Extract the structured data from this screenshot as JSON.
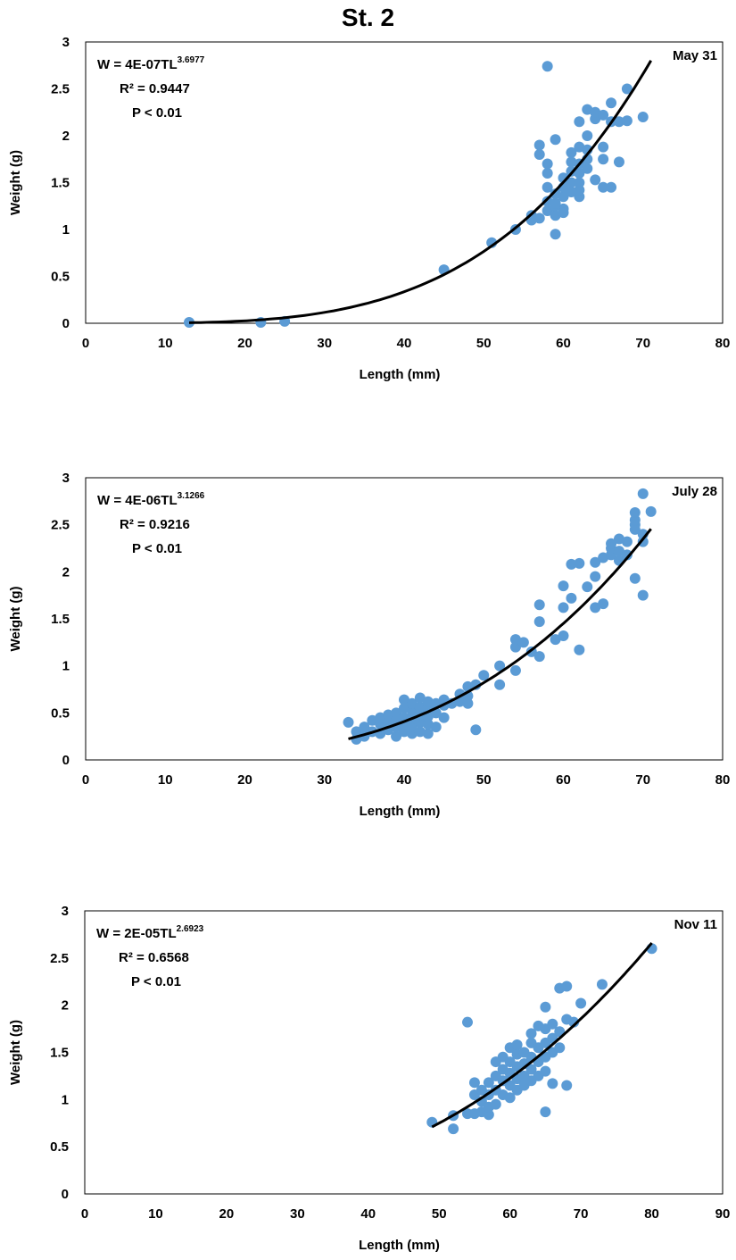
{
  "title": "St. 2",
  "colors": {
    "marker": "#5B9BD5",
    "trend": "#000000",
    "frame": "#000000"
  },
  "chart_data": [
    {
      "type": "scatter",
      "date_label": "May 31",
      "xlabel": "Length (mm)",
      "ylabel": "Weight (g)",
      "xlim": [
        0,
        80
      ],
      "ylim": [
        0,
        3
      ],
      "xticks": [
        "0",
        "10",
        "20",
        "30",
        "40",
        "50",
        "60",
        "70",
        "80"
      ],
      "yticks": [
        "0",
        "0.5",
        "1",
        "1.5",
        "2",
        "2.5",
        "3"
      ],
      "equation": {
        "prefix": "W = 4E-07TL",
        "exponent": "3.6977",
        "a": 4e-07,
        "b": 3.6977,
        "fit_range": [
          13,
          71
        ]
      },
      "r2_label": "R² = 0.9447",
      "p_label": "P < 0.01",
      "points": [
        [
          13,
          0.01
        ],
        [
          22,
          0.01
        ],
        [
          25,
          0.02
        ],
        [
          45,
          0.57
        ],
        [
          51,
          0.86
        ],
        [
          54,
          1.0
        ],
        [
          56,
          1.1
        ],
        [
          57,
          1.12
        ],
        [
          57,
          1.8
        ],
        [
          57,
          1.9
        ],
        [
          58,
          1.2
        ],
        [
          58,
          1.3
        ],
        [
          58,
          1.45
        ],
        [
          58,
          1.6
        ],
        [
          58,
          1.7
        ],
        [
          58,
          2.74
        ],
        [
          59,
          0.95
        ],
        [
          59,
          1.15
        ],
        [
          59,
          1.25
        ],
        [
          59,
          1.38
        ],
        [
          59,
          1.96
        ],
        [
          60,
          1.22
        ],
        [
          60,
          1.35
        ],
        [
          60,
          1.45
        ],
        [
          60,
          1.55
        ],
        [
          61,
          1.5
        ],
        [
          61,
          1.62
        ],
        [
          61,
          1.72
        ],
        [
          61,
          1.82
        ],
        [
          62,
          1.35
        ],
        [
          62,
          1.42
        ],
        [
          62,
          1.5
        ],
        [
          62,
          1.6
        ],
        [
          62,
          1.7
        ],
        [
          62,
          1.88
        ],
        [
          62,
          2.15
        ],
        [
          63,
          1.65
        ],
        [
          63,
          1.75
        ],
        [
          63,
          1.85
        ],
        [
          63,
          2.0
        ],
        [
          63,
          2.28
        ],
        [
          64,
          1.53
        ],
        [
          64,
          2.18
        ],
        [
          64,
          2.25
        ],
        [
          65,
          1.45
        ],
        [
          65,
          1.75
        ],
        [
          65,
          1.88
        ],
        [
          65,
          2.22
        ],
        [
          66,
          1.45
        ],
        [
          66,
          2.15
        ],
        [
          66,
          2.35
        ],
        [
          67,
          1.72
        ],
        [
          67,
          2.15
        ],
        [
          68,
          2.16
        ],
        [
          68,
          2.5
        ],
        [
          70,
          2.2
        ],
        [
          56,
          1.15
        ],
        [
          59,
          1.28
        ],
        [
          60,
          1.18
        ],
        [
          61,
          1.4
        ]
      ]
    },
    {
      "type": "scatter",
      "date_label": "July 28",
      "xlabel": "Length (mm)",
      "ylabel": "Weight (g)",
      "xlim": [
        0,
        80
      ],
      "ylim": [
        0,
        3
      ],
      "xticks": [
        "0",
        "10",
        "20",
        "30",
        "40",
        "50",
        "60",
        "70",
        "80"
      ],
      "yticks": [
        "0",
        "0.5",
        "1",
        "1.5",
        "2",
        "2.5",
        "3"
      ],
      "equation": {
        "prefix": "W = 4E-06TL",
        "exponent": "3.1266",
        "a": 4e-06,
        "b": 3.1266,
        "fit_range": [
          33,
          71
        ]
      },
      "r2_label": "R² = 0.9216",
      "p_label": "P < 0.01",
      "points": [
        [
          33,
          0.4
        ],
        [
          34,
          0.22
        ],
        [
          34,
          0.3
        ],
        [
          35,
          0.25
        ],
        [
          35,
          0.35
        ],
        [
          36,
          0.3
        ],
        [
          36,
          0.42
        ],
        [
          37,
          0.28
        ],
        [
          37,
          0.38
        ],
        [
          37,
          0.45
        ],
        [
          38,
          0.32
        ],
        [
          38,
          0.4
        ],
        [
          38,
          0.48
        ],
        [
          39,
          0.25
        ],
        [
          39,
          0.35
        ],
        [
          39,
          0.42
        ],
        [
          39,
          0.5
        ],
        [
          40,
          0.3
        ],
        [
          40,
          0.38
        ],
        [
          40,
          0.45
        ],
        [
          40,
          0.55
        ],
        [
          40,
          0.64
        ],
        [
          41,
          0.28
        ],
        [
          41,
          0.36
        ],
        [
          41,
          0.44
        ],
        [
          41,
          0.52
        ],
        [
          41,
          0.6
        ],
        [
          42,
          0.3
        ],
        [
          42,
          0.4
        ],
        [
          42,
          0.48
        ],
        [
          42,
          0.56
        ],
        [
          42,
          0.66
        ],
        [
          43,
          0.28
        ],
        [
          43,
          0.38
        ],
        [
          43,
          0.46
        ],
        [
          43,
          0.55
        ],
        [
          43,
          0.62
        ],
        [
          44,
          0.35
        ],
        [
          44,
          0.5
        ],
        [
          44,
          0.6
        ],
        [
          45,
          0.45
        ],
        [
          45,
          0.58
        ],
        [
          45,
          0.64
        ],
        [
          46,
          0.6
        ],
        [
          47,
          0.62
        ],
        [
          47,
          0.7
        ],
        [
          48,
          0.6
        ],
        [
          48,
          0.68
        ],
        [
          48,
          0.78
        ],
        [
          49,
          0.32
        ],
        [
          49,
          0.8
        ],
        [
          50,
          0.9
        ],
        [
          52,
          0.8
        ],
        [
          52,
          1.0
        ],
        [
          54,
          0.95
        ],
        [
          54,
          1.2
        ],
        [
          54,
          1.28
        ],
        [
          55,
          1.25
        ],
        [
          56,
          1.15
        ],
        [
          57,
          1.1
        ],
        [
          57,
          1.47
        ],
        [
          57,
          1.65
        ],
        [
          59,
          1.28
        ],
        [
          60,
          1.32
        ],
        [
          60,
          1.62
        ],
        [
          60,
          1.85
        ],
        [
          61,
          1.72
        ],
        [
          61,
          2.08
        ],
        [
          62,
          1.17
        ],
        [
          62,
          2.09
        ],
        [
          63,
          1.84
        ],
        [
          64,
          1.62
        ],
        [
          64,
          1.95
        ],
        [
          64,
          2.1
        ],
        [
          65,
          1.66
        ],
        [
          65,
          2.15
        ],
        [
          66,
          2.18
        ],
        [
          66,
          2.25
        ],
        [
          66,
          2.3
        ],
        [
          67,
          2.12
        ],
        [
          67,
          2.22
        ],
        [
          67,
          2.35
        ],
        [
          68,
          2.18
        ],
        [
          68,
          2.32
        ],
        [
          69,
          1.93
        ],
        [
          69,
          2.45
        ],
        [
          69,
          2.5
        ],
        [
          69,
          2.55
        ],
        [
          69,
          2.63
        ],
        [
          70,
          1.75
        ],
        [
          70,
          2.32
        ],
        [
          70,
          2.4
        ],
        [
          70,
          2.83
        ],
        [
          71,
          2.64
        ]
      ]
    },
    {
      "type": "scatter",
      "date_label": "Nov 11",
      "xlabel": "Length (mm)",
      "ylabel": "Weight (g)",
      "xlim": [
        0,
        90
      ],
      "ylim": [
        0,
        3
      ],
      "xticks": [
        "0",
        "10",
        "20",
        "30",
        "40",
        "50",
        "60",
        "70",
        "80",
        "90"
      ],
      "yticks": [
        "0",
        "0.5",
        "1",
        "1.5",
        "2",
        "2.5",
        "3"
      ],
      "equation": {
        "prefix": "W = 2E-05TL",
        "exponent": "2.6923",
        "a": 2e-05,
        "b": 2.6923,
        "fit_range": [
          49,
          80
        ]
      },
      "r2_label": "R² = 0.6568",
      "p_label": "P < 0.01",
      "points": [
        [
          49,
          0.76
        ],
        [
          52,
          0.69
        ],
        [
          52,
          0.83
        ],
        [
          54,
          0.85
        ],
        [
          54,
          1.82
        ],
        [
          55,
          0.85
        ],
        [
          55,
          1.05
        ],
        [
          55,
          1.18
        ],
        [
          56,
          0.87
        ],
        [
          56,
          0.98
        ],
        [
          56,
          1.1
        ],
        [
          57,
          0.84
        ],
        [
          57,
          0.92
        ],
        [
          57,
          1.05
        ],
        [
          57,
          1.18
        ],
        [
          58,
          0.95
        ],
        [
          58,
          1.1
        ],
        [
          58,
          1.25
        ],
        [
          58,
          1.4
        ],
        [
          59,
          1.05
        ],
        [
          59,
          1.2
        ],
        [
          59,
          1.32
        ],
        [
          59,
          1.45
        ],
        [
          60,
          1.02
        ],
        [
          60,
          1.15
        ],
        [
          60,
          1.28
        ],
        [
          60,
          1.4
        ],
        [
          60,
          1.55
        ],
        [
          61,
          1.1
        ],
        [
          61,
          1.22
        ],
        [
          61,
          1.35
        ],
        [
          61,
          1.48
        ],
        [
          61,
          1.58
        ],
        [
          62,
          1.15
        ],
        [
          62,
          1.25
        ],
        [
          62,
          1.38
        ],
        [
          62,
          1.5
        ],
        [
          63,
          1.2
        ],
        [
          63,
          1.32
        ],
        [
          63,
          1.45
        ],
        [
          63,
          1.6
        ],
        [
          63,
          1.7
        ],
        [
          64,
          1.25
        ],
        [
          64,
          1.4
        ],
        [
          64,
          1.55
        ],
        [
          64,
          1.78
        ],
        [
          65,
          0.87
        ],
        [
          65,
          1.3
        ],
        [
          65,
          1.45
        ],
        [
          65,
          1.6
        ],
        [
          65,
          1.75
        ],
        [
          65,
          1.98
        ],
        [
          66,
          1.17
        ],
        [
          66,
          1.5
        ],
        [
          66,
          1.65
        ],
        [
          66,
          1.8
        ],
        [
          67,
          1.55
        ],
        [
          67,
          1.72
        ],
        [
          67,
          2.18
        ],
        [
          68,
          1.15
        ],
        [
          68,
          1.85
        ],
        [
          68,
          2.2
        ],
        [
          69,
          1.82
        ],
        [
          70,
          2.02
        ],
        [
          73,
          2.22
        ],
        [
          80,
          2.6
        ]
      ]
    }
  ]
}
